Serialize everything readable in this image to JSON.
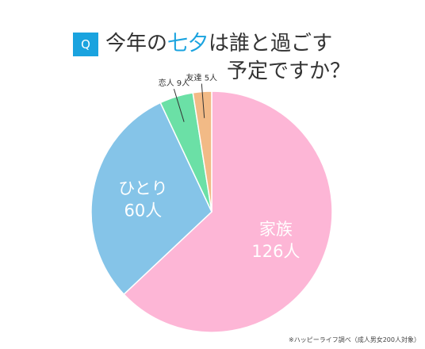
{
  "title": {
    "badge": "Q",
    "line1_a": "今年の",
    "line1_highlight": "七夕",
    "line1_b": "は誰と過ごす",
    "line2": "予定ですか？"
  },
  "source_note": "※ハッピーライフ調べ（成人男女200人対象）",
  "colors": {
    "accent": "#1aa3df",
    "title_text": "#333333"
  },
  "chart_data": {
    "type": "pie",
    "start_angle_deg": 0,
    "direction": "clockwise",
    "slices": [
      {
        "label": "家族",
        "value": 126,
        "value_text": "126人",
        "color": "#fdb6d6",
        "label_color": "#ffffff",
        "placement": "inside"
      },
      {
        "label": "ひとり",
        "value": 60,
        "value_text": "60人",
        "color": "#85c4e8",
        "label_color": "#ffffff",
        "placement": "inside"
      },
      {
        "label": "恋人",
        "value": 9,
        "value_text": "9人",
        "color": "#6be0a6",
        "label_color": "#333333",
        "placement": "outside"
      },
      {
        "label": "友達",
        "value": 5,
        "value_text": "5人",
        "color": "#f2ba86",
        "label_color": "#333333",
        "placement": "outside"
      }
    ]
  }
}
